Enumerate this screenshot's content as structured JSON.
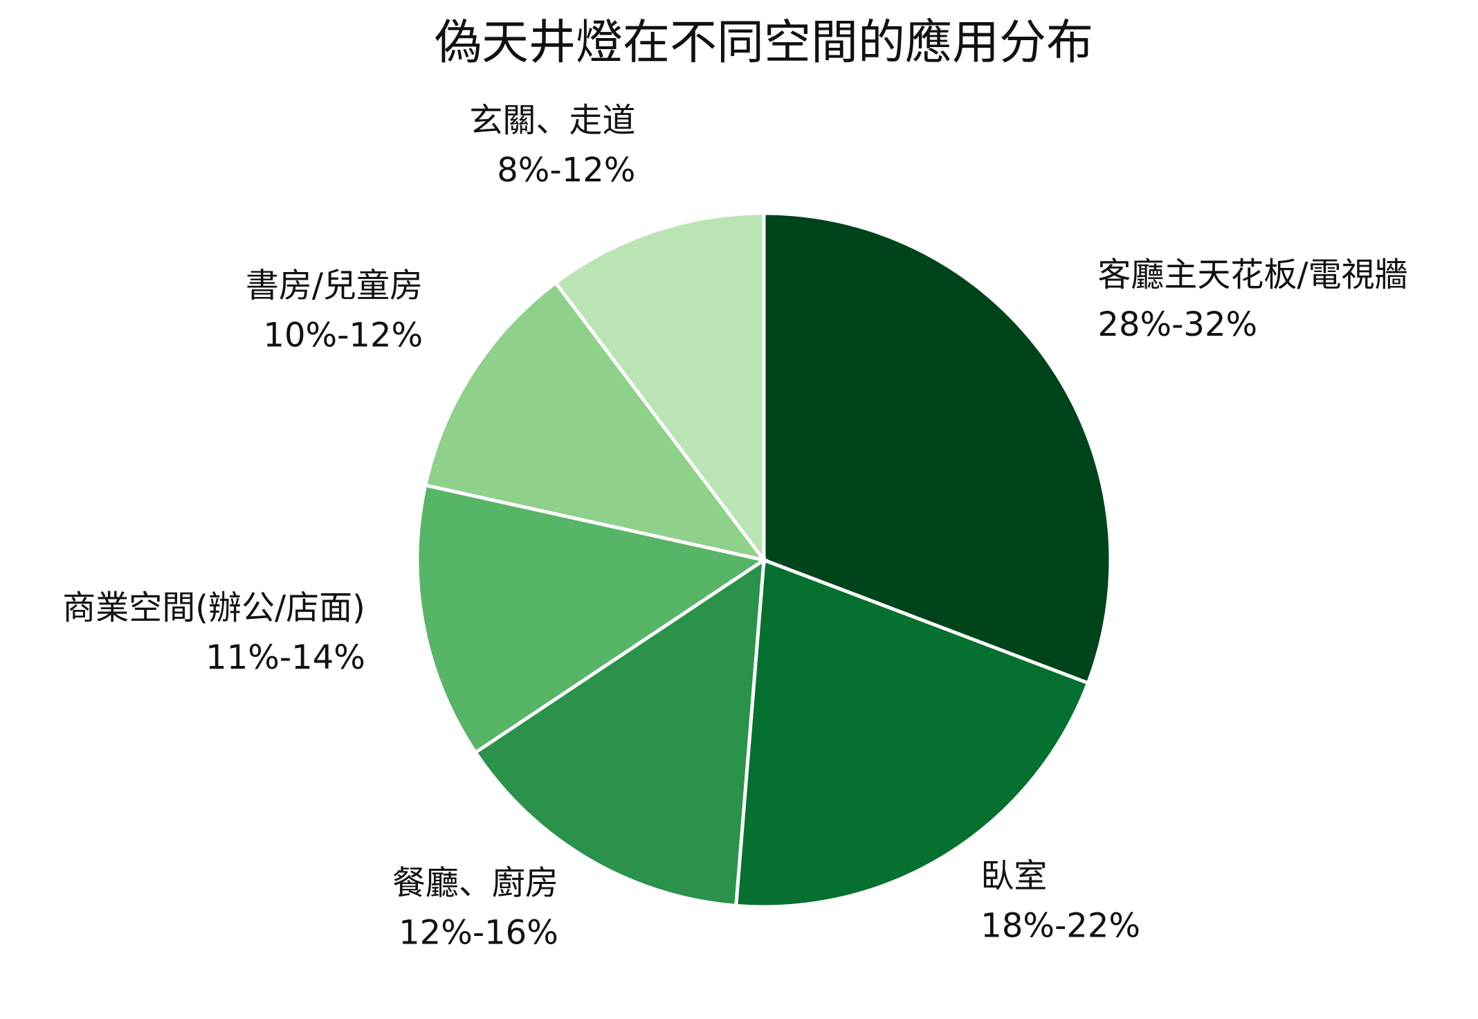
{
  "chart_data": {
    "type": "pie",
    "title": "偽天井燈在不同空間的應用分布",
    "categories": [
      "客廳主天花板/電視牆",
      "臥室",
      "餐廳、廚房",
      "商業空間(辦公/店面)",
      "書房/兒童房",
      "玄關、走道"
    ],
    "values": [
      30,
      20,
      14,
      12.5,
      11,
      10
    ],
    "value_labels": [
      "28%-32%",
      "18%-22%",
      "12%-16%",
      "11%-14%",
      "10%-12%",
      "8%-12%"
    ],
    "colors": [
      "#00441b",
      "#067030",
      "#2b924b",
      "#56b567",
      "#8fd08a",
      "#bae4b4"
    ]
  }
}
